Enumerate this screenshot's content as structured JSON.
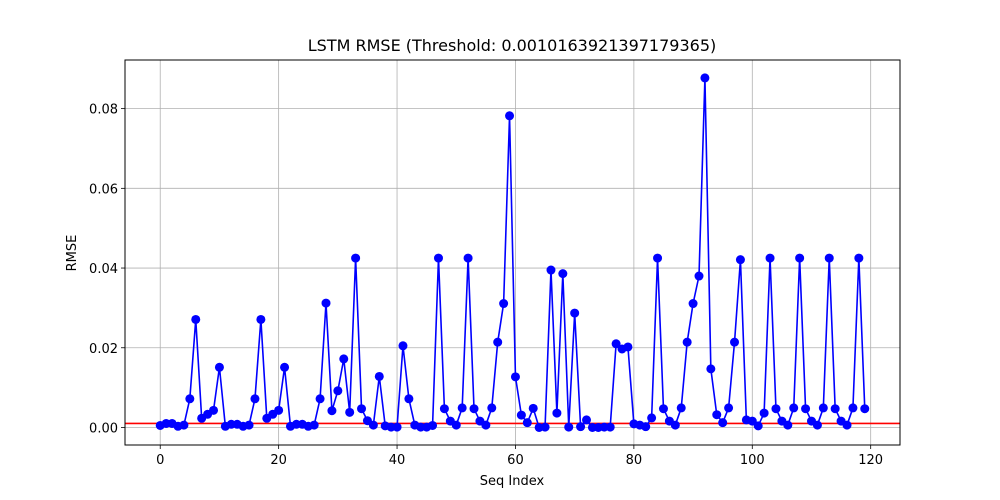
{
  "chart_data": {
    "type": "line",
    "title": "LSTM RMSE (Threshold: 0.0010163921397179365)",
    "xlabel": "Seq Index",
    "ylabel": "RMSE",
    "xlim": [
      -5.95,
      124.95
    ],
    "ylim": [
      -0.0044,
      0.0922
    ],
    "xticks": [
      0,
      20,
      40,
      60,
      80,
      100,
      120
    ],
    "yticks": [
      0.0,
      0.02,
      0.04,
      0.06,
      0.08
    ],
    "xtick_labels": [
      "0",
      "20",
      "40",
      "60",
      "80",
      "100",
      "120"
    ],
    "ytick_labels": [
      "0.00",
      "0.02",
      "0.04",
      "0.06",
      "0.08"
    ],
    "grid": true,
    "legend": "none",
    "threshold": 0.0010163921397179365,
    "colors": {
      "series": "#0000ff",
      "threshold": "#ff0000",
      "grid": "#b0b0b0"
    },
    "series": [
      {
        "x": [
          0,
          1,
          2,
          3,
          4,
          5,
          6,
          7,
          8,
          9,
          10,
          11,
          12,
          13,
          14,
          15,
          16,
          17,
          18,
          19,
          20,
          21,
          22,
          23,
          24,
          25,
          26,
          27,
          28,
          29,
          30,
          31,
          32,
          33,
          34,
          35,
          36,
          37,
          38,
          39,
          40,
          41,
          42,
          43,
          44,
          45,
          46,
          47,
          48,
          49,
          50,
          51,
          52,
          53,
          54,
          55,
          56,
          57,
          58,
          59,
          60,
          61,
          62,
          63,
          64,
          65,
          66,
          67,
          68,
          69,
          70,
          71,
          72,
          73,
          74,
          75,
          76,
          77,
          78,
          79,
          80,
          81,
          82,
          83,
          84,
          85,
          86,
          87,
          88,
          89,
          90,
          91,
          92,
          93,
          94,
          95,
          96,
          97,
          98,
          99,
          100,
          101,
          102,
          103,
          104,
          105,
          106,
          107,
          108,
          109,
          110,
          111,
          112,
          113,
          114,
          115,
          116,
          117,
          118,
          119
        ],
        "values": [
          0.0005,
          0.001,
          0.001,
          0.0003,
          0.0006,
          0.0072,
          0.0271,
          0.0023,
          0.0033,
          0.0043,
          0.0151,
          0.0003,
          0.0008,
          0.0008,
          0.0003,
          0.0006,
          0.0072,
          0.0271,
          0.0023,
          0.0033,
          0.0043,
          0.0151,
          0.0003,
          0.0008,
          0.0008,
          0.0003,
          0.0006,
          0.0072,
          0.0312,
          0.0042,
          0.0092,
          0.0172,
          0.0038,
          0.0425,
          0.0047,
          0.0017,
          0.0006,
          0.0128,
          0.0004,
          0.0001,
          0.0001,
          0.0205,
          0.0072,
          0.0006,
          0.0001,
          0.0001,
          0.0005,
          0.0425,
          0.0047,
          0.0016,
          0.0006,
          0.0049,
          0.0425,
          0.0047,
          0.0016,
          0.0006,
          0.0049,
          0.0214,
          0.0311,
          0.0782,
          0.0127,
          0.0031,
          0.0012,
          0.0048,
          0.0,
          0.0001,
          0.0395,
          0.0036,
          0.0386,
          0.0001,
          0.0287,
          0.0002,
          0.0019,
          0.0,
          0.0,
          0.0001,
          0.0001,
          0.021,
          0.0197,
          0.0202,
          0.0009,
          0.0006,
          0.0002,
          0.0024,
          0.0425,
          0.0047,
          0.0016,
          0.0006,
          0.0049,
          0.0214,
          0.0311,
          0.038,
          0.0877,
          0.0147,
          0.0032,
          0.0012,
          0.0049,
          0.0214,
          0.0421,
          0.0019,
          0.0016,
          0.0004,
          0.0036,
          0.0425,
          0.0047,
          0.0016,
          0.0006,
          0.0049,
          0.0425,
          0.0047,
          0.0016,
          0.0006,
          0.0049,
          0.0425,
          0.0047,
          0.0016,
          0.0006,
          0.0049,
          0.0425,
          0.0047
        ]
      }
    ]
  }
}
